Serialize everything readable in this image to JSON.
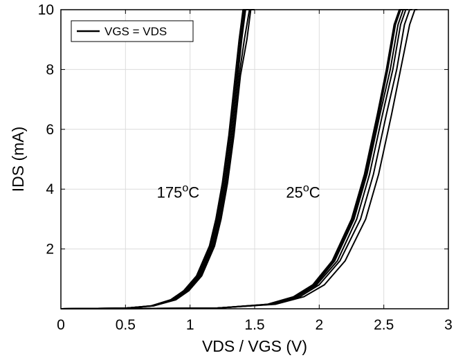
{
  "chart_data": {
    "type": "line",
    "xlabel": "VDS / VGS (V)",
    "ylabel": "IDS (mA)",
    "xlim": [
      0,
      3
    ],
    "ylim": [
      0,
      10
    ],
    "x_ticks": [
      "0",
      "0.5",
      "1",
      "1.5",
      "2",
      "2.5",
      "3"
    ],
    "y_ticks": [
      "2",
      "4",
      "6",
      "8",
      "10"
    ],
    "grid": true,
    "legend": {
      "placement": "top-left",
      "label": "VGS = VDS"
    },
    "annotations": [
      {
        "text": "175",
        "sup": "o",
        "unit": "C",
        "x": 1.0,
        "y": 3.9
      },
      {
        "text": "25",
        "sup": "o",
        "unit": "C",
        "x": 2.0,
        "y": 3.9
      }
    ],
    "groups": [
      {
        "temperature": "175°C",
        "series": [
          {
            "x": [
              0,
              0.5,
              0.7,
              0.85,
              0.95,
              1.05,
              1.15,
              1.2,
              1.25,
              1.3,
              1.35,
              1.38,
              1.41,
              1.43
            ],
            "y": [
              0,
              0.02,
              0.1,
              0.3,
              0.6,
              1.1,
              2.1,
              3.0,
              4.2,
              5.8,
              7.8,
              9.0,
              10.0,
              10.0
            ]
          },
          {
            "x": [
              0,
              0.5,
              0.7,
              0.86,
              0.96,
              1.06,
              1.16,
              1.21,
              1.26,
              1.31,
              1.36,
              1.39,
              1.42,
              1.45
            ],
            "y": [
              0,
              0.02,
              0.1,
              0.3,
              0.6,
              1.1,
              2.1,
              3.0,
              4.2,
              5.8,
              7.8,
              9.0,
              10.0,
              10.0
            ]
          },
          {
            "x": [
              0,
              0.5,
              0.71,
              0.87,
              0.97,
              1.07,
              1.17,
              1.22,
              1.27,
              1.32,
              1.37,
              1.4,
              1.43,
              1.46
            ],
            "y": [
              0,
              0.02,
              0.1,
              0.3,
              0.6,
              1.1,
              2.1,
              3.0,
              4.2,
              5.8,
              7.8,
              9.0,
              10.0,
              10.0
            ]
          },
          {
            "x": [
              0,
              0.5,
              0.72,
              0.88,
              0.98,
              1.08,
              1.18,
              1.23,
              1.28,
              1.33,
              1.38,
              1.42,
              1.46,
              1.5
            ],
            "y": [
              0,
              0.02,
              0.1,
              0.3,
              0.6,
              1.1,
              2.1,
              3.0,
              4.2,
              5.8,
              7.8,
              9.0,
              10.0,
              10.0
            ]
          },
          {
            "x": [
              0,
              0.5,
              0.72,
              0.89,
              0.99,
              1.09,
              1.19,
              1.24,
              1.29,
              1.34,
              1.39,
              1.44,
              1.47,
              1.5
            ],
            "y": [
              0,
              0.02,
              0.1,
              0.3,
              0.6,
              1.1,
              2.1,
              3.0,
              4.2,
              5.8,
              7.8,
              9.0,
              10.0,
              10.0
            ]
          }
        ]
      },
      {
        "temperature": "25°C",
        "series": [
          {
            "x": [
              0,
              1.2,
              1.6,
              1.8,
              1.95,
              2.1,
              2.25,
              2.35,
              2.45,
              2.52,
              2.58,
              2.62,
              2.64
            ],
            "y": [
              0,
              0.02,
              0.15,
              0.4,
              0.8,
              1.6,
              3.0,
              4.5,
              6.5,
              8.0,
              9.5,
              10.0,
              10.0
            ]
          },
          {
            "x": [
              0,
              1.2,
              1.61,
              1.81,
              1.96,
              2.11,
              2.26,
              2.36,
              2.46,
              2.53,
              2.59,
              2.63,
              2.65
            ],
            "y": [
              0,
              0.02,
              0.15,
              0.4,
              0.8,
              1.6,
              3.0,
              4.5,
              6.5,
              8.0,
              9.5,
              10.0,
              10.0
            ]
          },
          {
            "x": [
              0,
              1.2,
              1.62,
              1.82,
              1.97,
              2.12,
              2.27,
              2.37,
              2.47,
              2.55,
              2.61,
              2.65,
              2.67
            ],
            "y": [
              0,
              0.02,
              0.15,
              0.4,
              0.8,
              1.6,
              3.0,
              4.5,
              6.5,
              8.0,
              9.5,
              10.0,
              10.0
            ]
          },
          {
            "x": [
              0,
              1.2,
              1.63,
              1.83,
              1.98,
              2.14,
              2.29,
              2.39,
              2.49,
              2.57,
              2.63,
              2.67,
              2.69
            ],
            "y": [
              0,
              0.02,
              0.15,
              0.4,
              0.8,
              1.6,
              3.0,
              4.5,
              6.5,
              8.0,
              9.5,
              10.0,
              10.0
            ]
          },
          {
            "x": [
              0,
              1.2,
              1.64,
              1.85,
              2.0,
              2.16,
              2.32,
              2.42,
              2.52,
              2.6,
              2.66,
              2.7,
              2.72
            ],
            "y": [
              0,
              0.02,
              0.15,
              0.4,
              0.8,
              1.6,
              3.0,
              4.5,
              6.5,
              8.0,
              9.5,
              10.0,
              10.0
            ]
          },
          {
            "x": [
              0,
              1.2,
              1.66,
              1.88,
              2.04,
              2.2,
              2.36,
              2.46,
              2.56,
              2.63,
              2.7,
              2.74,
              2.76
            ],
            "y": [
              0,
              0.02,
              0.15,
              0.4,
              0.8,
              1.6,
              3.0,
              4.5,
              6.5,
              8.0,
              9.5,
              10.0,
              10.0
            ]
          }
        ]
      }
    ]
  }
}
